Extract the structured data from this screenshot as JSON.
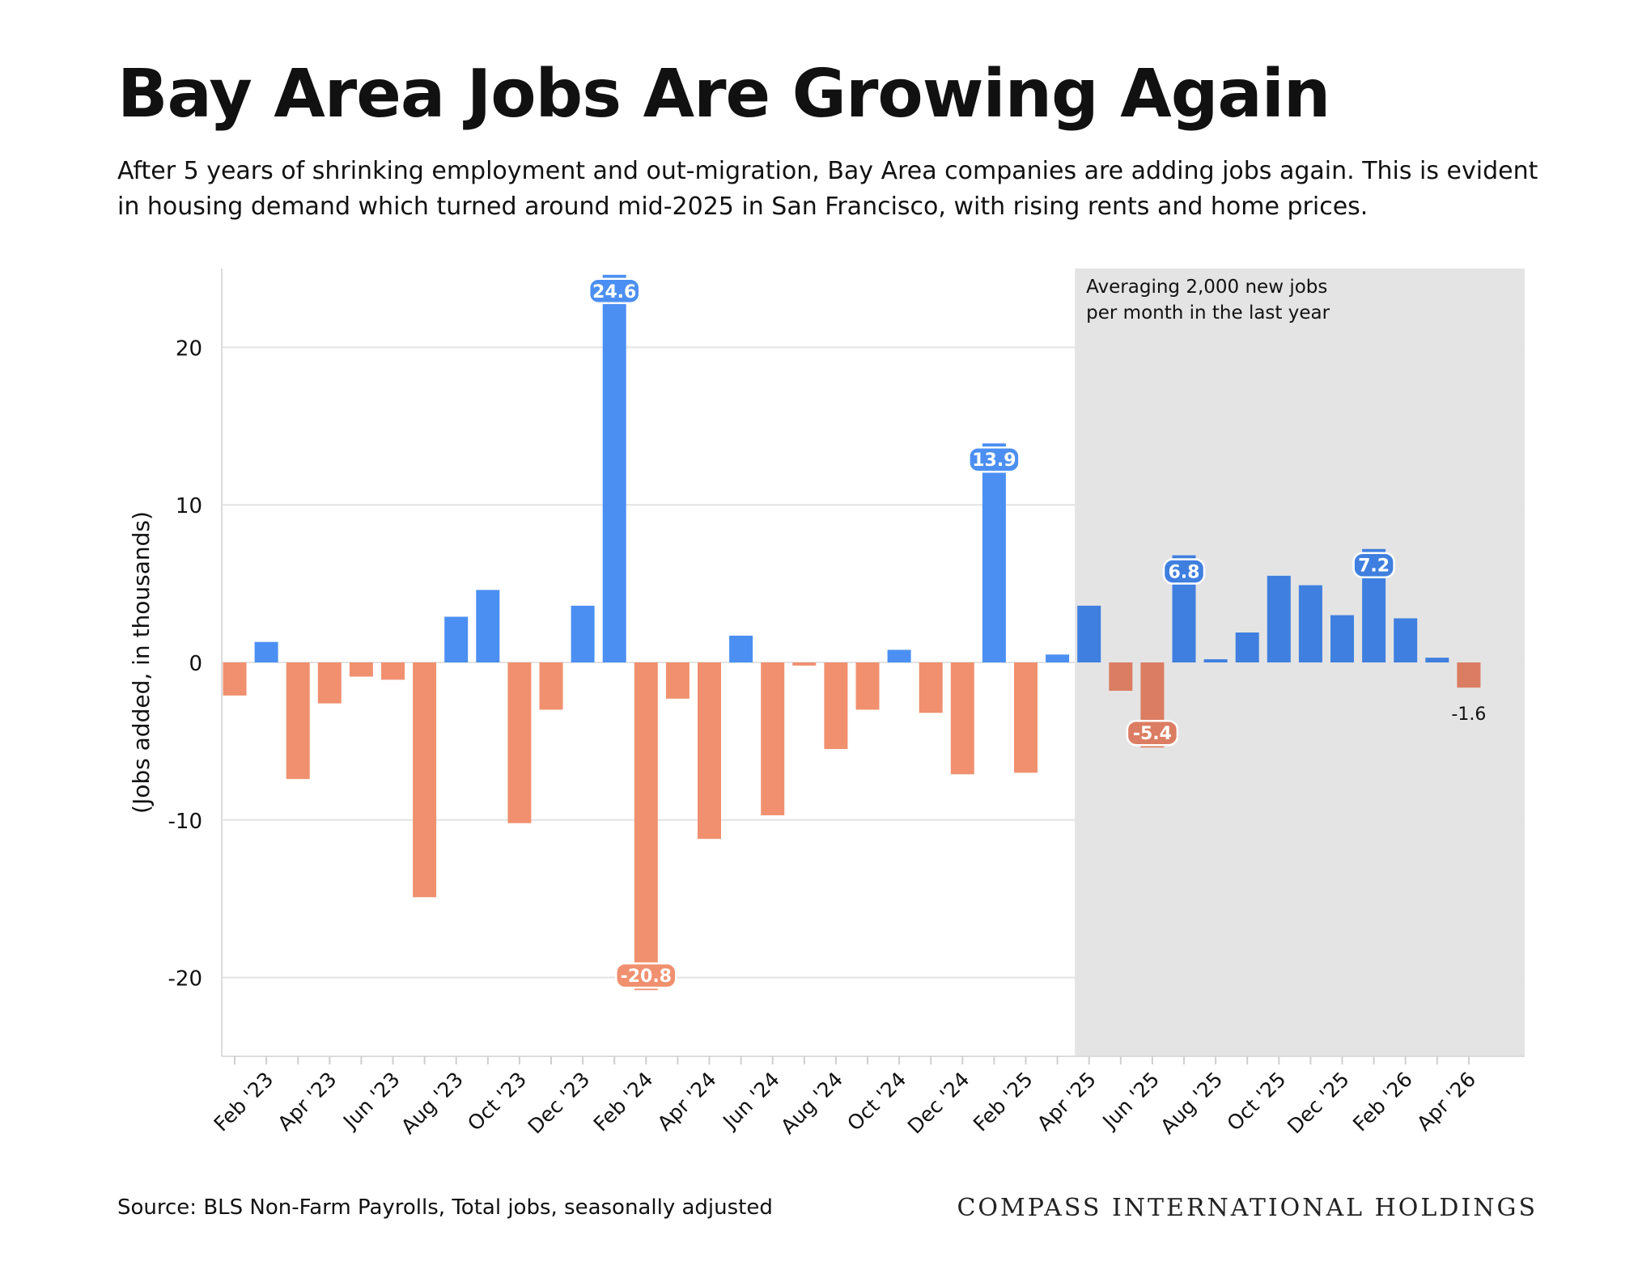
{
  "header": {
    "title": "Bay Area Jobs Are Growing Again",
    "subtitle": "After 5 years of shrinking employment and out-migration, Bay Area companies are adding jobs again. This is evident in housing demand which turned around mid-2025 in San Francisco, with rising rents and home prices."
  },
  "footer": {
    "source": "Source: BLS Non-Farm Payrolls, Total jobs, seasonally adjusted",
    "brand": "COMPASS INTERNATIONAL HOLDINGS"
  },
  "colors": {
    "positive": "#4b8ff2",
    "negative": "#f0906f",
    "positive_shaded": "#3f7fdf",
    "negative_shaded": "#db7d62",
    "shade": "#e4e4e4",
    "grid": "#e3e3e3"
  },
  "chart_data": {
    "type": "bar",
    "ylabel": "(Jobs added, in thousands)",
    "ylim": [
      -25,
      25
    ],
    "yticks": [
      -20,
      -10,
      0,
      10,
      20
    ],
    "grid": true,
    "categories": [
      "Jan '23",
      "Feb '23",
      "Mar '23",
      "Apr '23",
      "May '23",
      "Jun '23",
      "Jul '23",
      "Aug '23",
      "Sep '23",
      "Oct '23",
      "Nov '23",
      "Dec '23",
      "Jan '24",
      "Feb '24",
      "Mar '24",
      "Apr '24",
      "May '24",
      "Jun '24",
      "Jul '24",
      "Aug '24",
      "Sep '24",
      "Oct '24",
      "Nov '24",
      "Dec '24",
      "Jan '25",
      "Feb '25",
      "Mar '25",
      "Apr '25",
      "May '25",
      "Jun '25",
      "Jul '25",
      "Aug '25",
      "Sep '25",
      "Oct '25",
      "Nov '25",
      "Dec '25",
      "Jan '26",
      "Feb '26",
      "Mar '26",
      "Apr '26"
    ],
    "xtick_labels": [
      "Feb '23",
      "Apr '23",
      "Jun '23",
      "Aug '23",
      "Oct '23",
      "Dec '23",
      "Feb '24",
      "Apr '24",
      "Jun '24",
      "Aug '24",
      "Oct '24",
      "Dec '24",
      "Feb '25",
      "Apr '25",
      "Jun '25",
      "Aug '25",
      "Oct '25",
      "Dec '25",
      "Feb '26",
      "Apr '26"
    ],
    "values": [
      -2.1,
      1.3,
      -7.4,
      -2.6,
      -0.9,
      -1.1,
      -14.9,
      2.9,
      4.6,
      -10.2,
      -3.0,
      3.6,
      24.6,
      -20.8,
      -2.3,
      -11.2,
      1.7,
      -9.7,
      -0.2,
      -5.5,
      -3.0,
      0.8,
      -3.2,
      -7.1,
      13.9,
      -7.0,
      0.5,
      3.6,
      -1.8,
      -5.4,
      6.8,
      0.2,
      1.9,
      5.5,
      4.9,
      3.0,
      7.2,
      2.8,
      0.3,
      -1.6
    ],
    "data_labels": [
      {
        "category": "Jan '24",
        "text": "24.6"
      },
      {
        "category": "Feb '24",
        "text": "-20.8"
      },
      {
        "category": "Jan '25",
        "text": "13.9"
      },
      {
        "category": "Jun '25",
        "text": "-5.4"
      },
      {
        "category": "Jul '25",
        "text": "6.8"
      },
      {
        "category": "Jan '26",
        "text": "7.2"
      },
      {
        "category": "Apr '26",
        "text": "-1.6"
      }
    ],
    "shaded_region": {
      "from": "Apr '25",
      "to": "Apr '26",
      "annotation": [
        "Averaging 2,000 new jobs",
        "per month in the last year"
      ]
    }
  }
}
